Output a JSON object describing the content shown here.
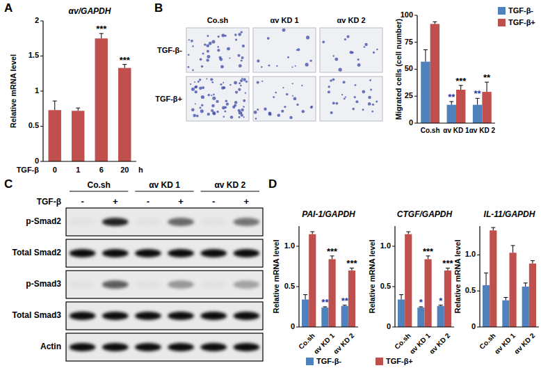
{
  "panel_labels": [
    "A",
    "B",
    "C",
    "D"
  ],
  "chart_data": [
    {
      "type": "bar",
      "title": "αv/GAPDH",
      "ylabel": "Relative mRNA level",
      "xlabel": "TGF-β",
      "x_unit": "h",
      "categories": [
        "0",
        "1",
        "6",
        "20"
      ],
      "values": [
        0.73,
        0.72,
        1.75,
        1.33
      ],
      "errors": [
        0.13,
        0.04,
        0.07,
        0.05
      ],
      "color": "#c0504d",
      "ylim": [
        0,
        2
      ],
      "yticks": [
        0,
        0.5,
        1,
        1.5,
        2
      ],
      "grid": false,
      "annotations": [
        {
          "text": "***",
          "category": 2
        },
        {
          "text": "***",
          "category": 3
        }
      ]
    },
    {
      "type": "bar",
      "ylabel": "Migrated cells (cell number)",
      "categories": [
        "Co.sh",
        "αv KD 1",
        "αv KD 2"
      ],
      "series": [
        {
          "name": "TGF-β-",
          "color": "#4f81bd",
          "values": [
            57,
            17,
            17
          ],
          "errors": [
            11,
            3,
            6
          ]
        },
        {
          "name": "TGF-β+",
          "color": "#c0504d",
          "values": [
            92,
            31,
            29
          ],
          "errors": [
            2,
            4,
            9
          ]
        }
      ],
      "ylim": [
        0,
        100
      ],
      "yticks": [
        0,
        25,
        50,
        75,
        100
      ],
      "grid": false,
      "legend": "top-right",
      "annotations": [
        {
          "text": "**",
          "category": 1,
          "series": 0,
          "color": "#2b3a9e"
        },
        {
          "text": "**",
          "category": 2,
          "series": 0,
          "color": "#2b3a9e"
        },
        {
          "text": "***",
          "category": 1,
          "series": 1
        },
        {
          "text": "**",
          "category": 2,
          "series": 1
        }
      ]
    },
    {
      "type": "bar",
      "title": "PAI-1/GAPDH",
      "ylabel": "Relative mRNA level",
      "categories": [
        "Co.sh",
        "αv KD 1",
        "αv KD 2"
      ],
      "series": [
        {
          "name": "TGF-β-",
          "color": "#4f81bd",
          "values": [
            0.34,
            0.24,
            0.26
          ],
          "errors": [
            0.06,
            0.01,
            0.01
          ]
        },
        {
          "name": "TGF-β+",
          "color": "#c0504d",
          "values": [
            1.15,
            0.84,
            0.7
          ],
          "errors": [
            0.03,
            0.04,
            0.03
          ]
        }
      ],
      "ylim": [
        0,
        1.25
      ],
      "yticks": [
        0,
        0.5,
        {
          "value": 1,
          "label": "1.0"
        }
      ],
      "grid": false,
      "legend": "bottom",
      "annotations": [
        {
          "text": "**",
          "category": 1,
          "series": 0,
          "color": "#2b3a9e"
        },
        {
          "text": "**",
          "category": 2,
          "series": 0,
          "color": "#2b3a9e"
        },
        {
          "text": "***",
          "category": 1,
          "series": 1
        },
        {
          "text": "***",
          "category": 2,
          "series": 1
        }
      ]
    },
    {
      "type": "bar",
      "title": "CTGF/GAPDH",
      "ylabel": "Relative mRNA level",
      "categories": [
        "Co.sh",
        "αv KD 1",
        "αv KD 2"
      ],
      "series": [
        {
          "name": "TGF-β-",
          "color": "#4f81bd",
          "values": [
            0.34,
            0.24,
            0.26
          ],
          "errors": [
            0.06,
            0.01,
            0.01
          ]
        },
        {
          "name": "TGF-β+",
          "color": "#c0504d",
          "values": [
            1.15,
            0.84,
            0.7
          ],
          "errors": [
            0.03,
            0.04,
            0.03
          ]
        }
      ],
      "ylim": [
        0,
        1.25
      ],
      "yticks": [
        0,
        0.5,
        {
          "value": 1,
          "label": "1.0"
        }
      ],
      "grid": false,
      "annotations": [
        {
          "text": "*",
          "category": 1,
          "series": 0,
          "color": "#2b3a9e"
        },
        {
          "text": "*",
          "category": 2,
          "series": 0,
          "color": "#2b3a9e"
        },
        {
          "text": "***",
          "category": 1,
          "series": 1
        },
        {
          "text": "***",
          "category": 2,
          "series": 1
        }
      ]
    },
    {
      "type": "bar",
      "title": "IL-11/GAPDH",
      "ylabel": "Relative mRNA level",
      "categories": [
        "Co.sh",
        "αv KD 1",
        "αv KD 2"
      ],
      "series": [
        {
          "name": "TGF-β-",
          "color": "#4f81bd",
          "values": [
            0.58,
            0.37,
            0.56
          ],
          "errors": [
            0.17,
            0.04,
            0.05
          ]
        },
        {
          "name": "TGF-β+",
          "color": "#c0504d",
          "values": [
            1.34,
            1.03,
            0.88
          ],
          "errors": [
            0.04,
            0.1,
            0.04
          ]
        }
      ],
      "ylim": [
        0,
        1.4
      ],
      "yticks": [
        0,
        0.5,
        {
          "value": 1,
          "label": "1.0"
        }
      ],
      "grid": false
    }
  ],
  "micrographs": {
    "columns": [
      "Co.sh",
      "αv KD 1",
      "αv KD 2"
    ],
    "rows": [
      "TGF-β-",
      "TGF-β+"
    ]
  },
  "blot": {
    "groups": [
      "Co.sh",
      "αv KD 1",
      "αv KD 2"
    ],
    "treatment_label": "TGF-β",
    "lanes": [
      "-",
      "+",
      "-",
      "+",
      "-",
      "+"
    ],
    "rows": [
      {
        "label": "p-Smad2",
        "intensity": [
          0.03,
          0.85,
          0.03,
          0.55,
          0.03,
          0.5
        ]
      },
      {
        "label": "Total Smad2",
        "intensity": [
          0.95,
          0.95,
          0.95,
          0.95,
          0.95,
          0.95
        ]
      },
      {
        "label": "p-Smad3",
        "intensity": [
          0.03,
          0.6,
          0.03,
          0.35,
          0.03,
          0.3
        ]
      },
      {
        "label": "Total Smad3",
        "intensity": [
          0.95,
          0.95,
          0.95,
          0.95,
          0.95,
          0.95
        ]
      },
      {
        "label": "Actin",
        "intensity": [
          0.95,
          0.95,
          0.95,
          0.95,
          0.95,
          0.95
        ]
      }
    ]
  }
}
